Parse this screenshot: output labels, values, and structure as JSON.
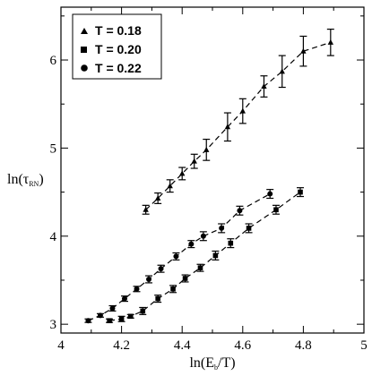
{
  "chart_data": {
    "type": "scatter",
    "xlabel": {
      "main": "ln(E",
      "sub": "b",
      "tail": "/T)"
    },
    "ylabel": {
      "main": "ln(τ",
      "sub": "RN",
      "tail": ")"
    },
    "xlim": [
      4.0,
      5.0
    ],
    "ylim": [
      2.9,
      6.6
    ],
    "x_ticks": [
      "4",
      "4.2",
      "4.4",
      "4.6",
      "4.8",
      "5"
    ],
    "y_ticks": [
      "3",
      "4",
      "5",
      "6"
    ],
    "grid": false,
    "legend_position": "top-left",
    "series": [
      {
        "name": "T = 0.18",
        "marker": "triangle",
        "x": [
          4.28,
          4.32,
          4.36,
          4.4,
          4.44,
          4.48,
          4.55,
          4.6,
          4.67,
          4.73,
          4.8,
          4.89
        ],
        "y": [
          4.3,
          4.43,
          4.57,
          4.71,
          4.85,
          4.98,
          5.24,
          5.42,
          5.7,
          5.87,
          6.1,
          6.2
        ],
        "err": [
          0.05,
          0.06,
          0.07,
          0.07,
          0.08,
          0.12,
          0.16,
          0.14,
          0.12,
          0.18,
          0.17,
          0.15
        ]
      },
      {
        "name": "T = 0.20",
        "marker": "square",
        "x": [
          4.16,
          4.2,
          4.23,
          4.27,
          4.32,
          4.37,
          4.41,
          4.46,
          4.51,
          4.56,
          4.62,
          4.71,
          4.79
        ],
        "y": [
          3.04,
          3.06,
          3.09,
          3.15,
          3.29,
          3.4,
          3.52,
          3.64,
          3.78,
          3.92,
          4.09,
          4.3,
          4.5
        ],
        "err": [
          0.02,
          0.03,
          0.02,
          0.04,
          0.04,
          0.04,
          0.04,
          0.04,
          0.05,
          0.05,
          0.05,
          0.05,
          0.05
        ]
      },
      {
        "name": "T = 0.22",
        "marker": "circle",
        "x": [
          4.09,
          4.13,
          4.17,
          4.21,
          4.25,
          4.29,
          4.33,
          4.38,
          4.43,
          4.47,
          4.53,
          4.59,
          4.69
        ],
        "y": [
          3.04,
          3.1,
          3.18,
          3.29,
          3.4,
          3.51,
          3.63,
          3.77,
          3.91,
          4.0,
          4.09,
          4.29,
          4.48
        ],
        "err": [
          0.02,
          0.02,
          0.03,
          0.03,
          0.03,
          0.04,
          0.04,
          0.04,
          0.04,
          0.05,
          0.05,
          0.05,
          0.05
        ]
      }
    ]
  }
}
